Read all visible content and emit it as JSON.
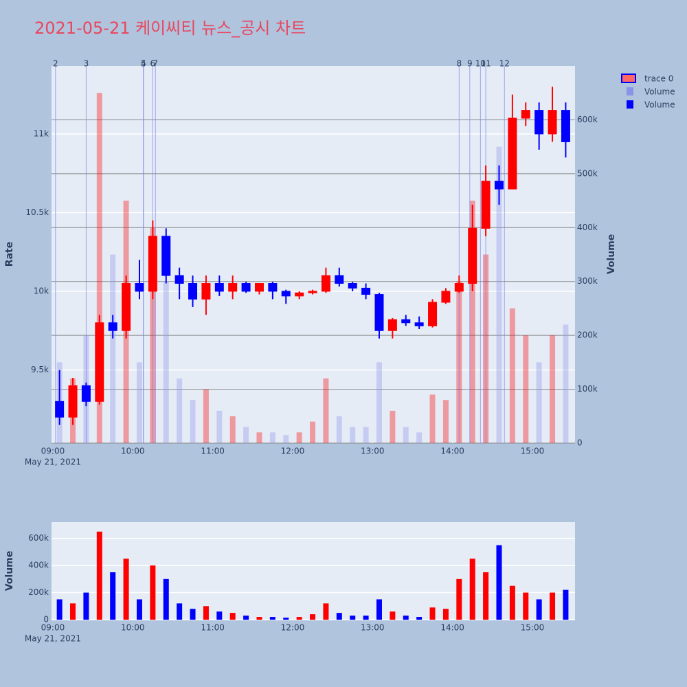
{
  "chart_data": [
    {
      "type": "candlestick",
      "title": "2021-05-21 케이씨티 뉴스_공시 차트",
      "candle_name": "trace 0",
      "increasing_color": "#ff0000",
      "decreasing_color": "#0000ff",
      "x": [
        "09:00",
        "09:10",
        "09:20",
        "09:30",
        "09:40",
        "09:50",
        "10:00",
        "10:10",
        "10:20",
        "10:30",
        "10:40",
        "10:50",
        "11:00",
        "11:10",
        "11:20",
        "11:30",
        "11:40",
        "11:50",
        "12:00",
        "12:10",
        "12:20",
        "12:30",
        "12:40",
        "12:50",
        "13:00",
        "13:10",
        "13:20",
        "13:30",
        "13:40",
        "13:50",
        "14:00",
        "14:10",
        "14:20",
        "14:30",
        "14:40",
        "14:50",
        "15:00",
        "15:10",
        "15:20"
      ],
      "open": [
        9300,
        9200,
        9400,
        9300,
        9800,
        9750,
        10050,
        10000,
        10350,
        10100,
        10050,
        9950,
        10050,
        10000,
        10050,
        10000,
        10050,
        10000,
        9970,
        9990,
        10000,
        10100,
        10050,
        10020,
        9980,
        9750,
        9820,
        9800,
        9780,
        9930,
        10000,
        10050,
        10400,
        10700,
        10650,
        11100,
        11150,
        11000,
        11150
      ],
      "high": [
        9500,
        9450,
        9420,
        9850,
        9850,
        10100,
        10200,
        10450,
        10400,
        10150,
        10100,
        10100,
        10100,
        10100,
        10060,
        10050,
        10060,
        10010,
        10000,
        10010,
        10150,
        10150,
        10060,
        10050,
        9990,
        9830,
        9850,
        9840,
        9950,
        10020,
        10100,
        10550,
        10800,
        10800,
        11250,
        11200,
        11200,
        11300,
        11200
      ],
      "low": [
        9150,
        9150,
        9270,
        9280,
        9700,
        9700,
        9950,
        9950,
        10050,
        9950,
        9900,
        9850,
        9970,
        9950,
        9990,
        9980,
        9950,
        9920,
        9950,
        9980,
        9990,
        10030,
        10000,
        9950,
        9700,
        9700,
        9780,
        9760,
        9770,
        9920,
        9990,
        10000,
        10350,
        10550,
        10650,
        11050,
        10900,
        10950,
        10850
      ],
      "close": [
        9200,
        9400,
        9300,
        9800,
        9750,
        10050,
        10000,
        10350,
        10100,
        10050,
        9950,
        10050,
        10000,
        10050,
        10000,
        10050,
        10000,
        9970,
        9990,
        10000,
        10100,
        10050,
        10020,
        9980,
        9750,
        9820,
        9800,
        9780,
        9930,
        10000,
        10050,
        10400,
        10700,
        10650,
        11100,
        11150,
        11000,
        11150,
        10950
      ],
      "ylabel": "Rate",
      "ylim": [
        9035,
        11432
      ],
      "yticks": [
        {
          "value": 9500,
          "label": "9.5k"
        },
        {
          "value": 10000,
          "label": "10k"
        },
        {
          "value": 10500,
          "label": "10.5k"
        },
        {
          "value": 11000,
          "label": "11k"
        }
      ],
      "y2label": "Volume",
      "y2lim": [
        0,
        700000
      ],
      "y2ticks": [
        0,
        {
          "value": 100000,
          "label": "100k"
        },
        {
          "value": 200000,
          "label": "200k"
        },
        {
          "value": 300000,
          "label": "300k"
        },
        {
          "value": 400000,
          "label": "400k"
        },
        {
          "value": 500000,
          "label": "500k"
        },
        {
          "value": 600000,
          "label": "600k"
        }
      ],
      "xlim": [
        "08:59",
        "15:32"
      ],
      "xticks": [
        "09:00",
        "10:00",
        "11:00",
        "12:00",
        "13:00",
        "14:00",
        "15:00"
      ],
      "xsublabel": "May 21, 2021",
      "news": [
        {
          "x": "09:02",
          "label": "2"
        },
        {
          "x": "09:25",
          "label": "3"
        },
        {
          "x": "10:08",
          "label": "4"
        },
        {
          "x": "10:08",
          "label": "5"
        },
        {
          "x": "10:15",
          "label": "6"
        },
        {
          "x": "10:17",
          "label": "7"
        },
        {
          "x": "14:05",
          "label": "8"
        },
        {
          "x": "14:13",
          "label": "9"
        },
        {
          "x": "14:21",
          "label": "10"
        },
        {
          "x": "14:25",
          "label": "11"
        },
        {
          "x": "14:39",
          "label": "12"
        }
      ],
      "series": [
        {
          "name": "Volume",
          "color": "#8b93e8",
          "axis": "y2",
          "values": [
            150000,
            120000,
            200000,
            650000,
            350000,
            450000,
            150000,
            400000,
            300000,
            120000,
            80000,
            100000,
            60000,
            50000,
            30000,
            20000,
            20000,
            15000,
            20000,
            40000,
            120000,
            50000,
            30000,
            30000,
            150000,
            60000,
            30000,
            20000,
            90000,
            80000,
            300000,
            450000,
            350000,
            550000,
            250000,
            200000,
            150000,
            200000,
            220000
          ]
        }
      ]
    },
    {
      "type": "bar",
      "increasing_color": "#ff0000",
      "decreasing_color": "#0000ff",
      "x": [
        "09:00",
        "09:10",
        "09:20",
        "09:30",
        "09:40",
        "09:50",
        "10:00",
        "10:10",
        "10:20",
        "10:30",
        "10:40",
        "10:50",
        "11:00",
        "11:10",
        "11:20",
        "11:30",
        "11:40",
        "11:50",
        "12:00",
        "12:10",
        "12:20",
        "12:30",
        "12:40",
        "12:50",
        "13:00",
        "13:10",
        "13:20",
        "13:30",
        "13:40",
        "13:50",
        "14:00",
        "14:10",
        "14:20",
        "14:30",
        "14:40",
        "14:50",
        "15:00",
        "15:10",
        "15:20"
      ],
      "series": [
        {
          "name": "Volume",
          "color": "#0000ff",
          "values": [
            150000,
            120000,
            200000,
            650000,
            350000,
            450000,
            150000,
            400000,
            300000,
            120000,
            80000,
            100000,
            60000,
            50000,
            30000,
            20000,
            20000,
            15000,
            20000,
            40000,
            120000,
            50000,
            30000,
            30000,
            150000,
            60000,
            30000,
            20000,
            90000,
            80000,
            300000,
            450000,
            350000,
            550000,
            250000,
            200000,
            150000,
            200000,
            220000
          ]
        }
      ],
      "ylabel": "Volume",
      "ylim": [
        0,
        720000
      ],
      "yticks": [
        0,
        {
          "value": 200000,
          "label": "200k"
        },
        {
          "value": 400000,
          "label": "400k"
        },
        {
          "value": 600000,
          "label": "600k"
        }
      ],
      "xlim": [
        "08:59",
        "15:32"
      ],
      "xticks": [
        "09:00",
        "10:00",
        "11:00",
        "12:00",
        "13:00",
        "14:00",
        "15:00"
      ],
      "xsublabel": "May 21, 2021"
    }
  ]
}
